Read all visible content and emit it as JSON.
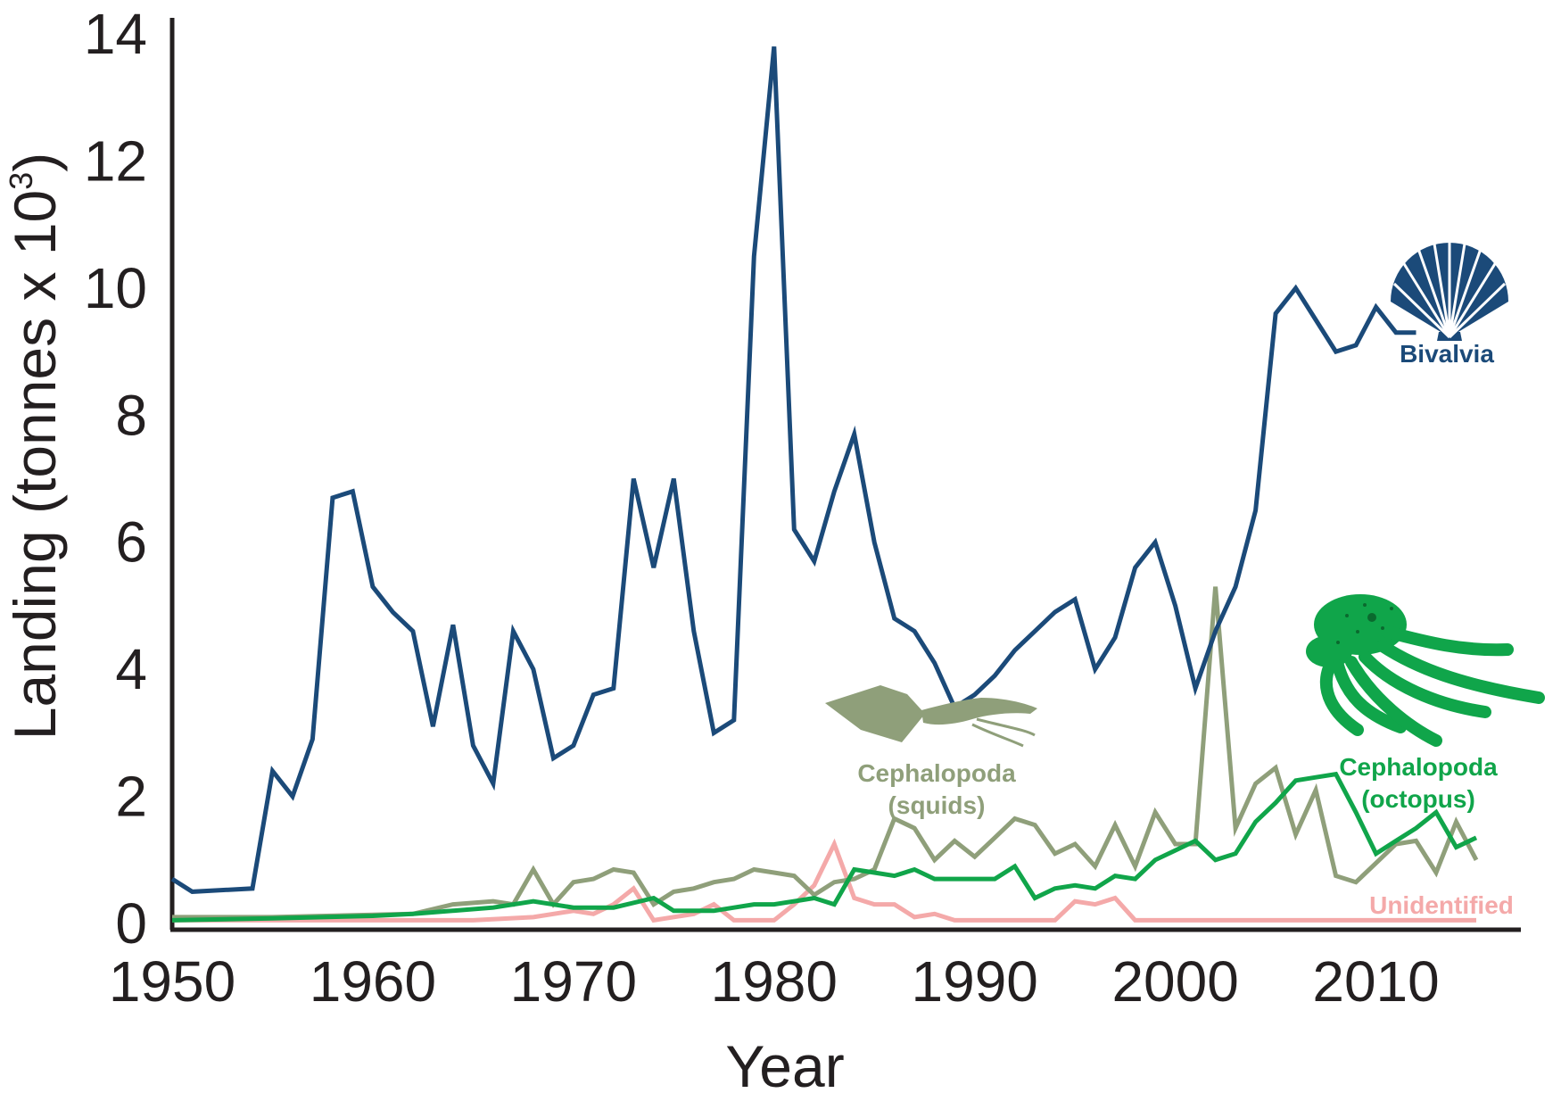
{
  "chart_data": {
    "type": "line",
    "xlabel": "Year",
    "ylabel": "Landing (tonnes x 10",
    "ylabel_superscript": "3",
    "ylabel_close": ")",
    "xlim": [
      1950,
      2017
    ],
    "ylim": [
      0,
      14
    ],
    "x_ticks": [
      1950,
      1960,
      1970,
      1980,
      1990,
      2000,
      2010
    ],
    "y_ticks": [
      0,
      2,
      4,
      6,
      8,
      10,
      12,
      14
    ],
    "grid": false,
    "legend": "inline labels next to series",
    "series": [
      {
        "name": "Bivalvia",
        "color": "#1b4a79",
        "points": [
          [
            1950,
            0.7
          ],
          [
            1951,
            0.5
          ],
          [
            1954,
            0.55
          ],
          [
            1955,
            2.4
          ],
          [
            1956,
            2.0
          ],
          [
            1957,
            2.9
          ],
          [
            1958,
            6.7
          ],
          [
            1959,
            6.8
          ],
          [
            1960,
            5.3
          ],
          [
            1961,
            4.9
          ],
          [
            1962,
            4.6
          ],
          [
            1963,
            3.1
          ],
          [
            1964,
            4.7
          ],
          [
            1965,
            2.8
          ],
          [
            1966,
            2.2
          ],
          [
            1967,
            4.6
          ],
          [
            1968,
            4.0
          ],
          [
            1969,
            2.6
          ],
          [
            1970,
            2.8
          ],
          [
            1971,
            3.6
          ],
          [
            1972,
            3.7
          ],
          [
            1973,
            7.0
          ],
          [
            1974,
            5.6
          ],
          [
            1975,
            7.0
          ],
          [
            1976,
            4.6
          ],
          [
            1977,
            3.0
          ],
          [
            1978,
            3.2
          ],
          [
            1979,
            10.5
          ],
          [
            1980,
            13.8
          ],
          [
            1981,
            6.2
          ],
          [
            1982,
            5.7
          ],
          [
            1983,
            6.8
          ],
          [
            1984,
            7.7
          ],
          [
            1985,
            6.0
          ],
          [
            1986,
            4.8
          ],
          [
            1987,
            4.6
          ],
          [
            1988,
            4.1
          ],
          [
            1989,
            3.4
          ],
          [
            1990,
            3.6
          ],
          [
            1991,
            3.9
          ],
          [
            1992,
            4.3
          ],
          [
            1993,
            4.6
          ],
          [
            1994,
            4.9
          ],
          [
            1995,
            5.1
          ],
          [
            1996,
            4.0
          ],
          [
            1997,
            4.5
          ],
          [
            1998,
            5.6
          ],
          [
            1999,
            6.0
          ],
          [
            2000,
            5.0
          ],
          [
            2001,
            3.7
          ],
          [
            2002,
            4.6
          ],
          [
            2003,
            5.3
          ],
          [
            2004,
            6.5
          ],
          [
            2005,
            9.6
          ],
          [
            2006,
            10.0
          ],
          [
            2007,
            9.5
          ],
          [
            2008,
            9.0
          ],
          [
            2009,
            9.1
          ],
          [
            2010,
            9.7
          ],
          [
            2011,
            9.3
          ],
          [
            2012,
            9.3
          ]
        ]
      },
      {
        "name": "Cephalopoda\n(squids)",
        "color": "#8f9f7a",
        "points": [
          [
            1950,
            0.1
          ],
          [
            1955,
            0.1
          ],
          [
            1962,
            0.15
          ],
          [
            1964,
            0.3
          ],
          [
            1966,
            0.35
          ],
          [
            1967,
            0.3
          ],
          [
            1968,
            0.85
          ],
          [
            1969,
            0.3
          ],
          [
            1970,
            0.65
          ],
          [
            1971,
            0.7
          ],
          [
            1972,
            0.85
          ],
          [
            1973,
            0.8
          ],
          [
            1974,
            0.3
          ],
          [
            1975,
            0.5
          ],
          [
            1976,
            0.55
          ],
          [
            1977,
            0.65
          ],
          [
            1978,
            0.7
          ],
          [
            1979,
            0.85
          ],
          [
            1980,
            0.8
          ],
          [
            1981,
            0.75
          ],
          [
            1982,
            0.45
          ],
          [
            1983,
            0.65
          ],
          [
            1984,
            0.7
          ],
          [
            1985,
            0.85
          ],
          [
            1986,
            1.65
          ],
          [
            1987,
            1.5
          ],
          [
            1988,
            1.0
          ],
          [
            1989,
            1.3
          ],
          [
            1990,
            1.05
          ],
          [
            1991,
            1.35
          ],
          [
            1992,
            1.65
          ],
          [
            1993,
            1.55
          ],
          [
            1994,
            1.1
          ],
          [
            1995,
            1.25
          ],
          [
            1996,
            0.9
          ],
          [
            1997,
            1.55
          ],
          [
            1998,
            0.9
          ],
          [
            1999,
            1.75
          ],
          [
            2000,
            1.25
          ],
          [
            2001,
            1.25
          ],
          [
            2002,
            5.3
          ],
          [
            2003,
            1.5
          ],
          [
            2004,
            2.2
          ],
          [
            2005,
            2.45
          ],
          [
            2006,
            1.4
          ],
          [
            2007,
            2.1
          ],
          [
            2008,
            0.75
          ],
          [
            2009,
            0.65
          ],
          [
            2010,
            0.95
          ],
          [
            2011,
            1.25
          ],
          [
            2012,
            1.3
          ],
          [
            2013,
            0.8
          ],
          [
            2014,
            1.6
          ],
          [
            2015,
            1.0
          ]
        ]
      },
      {
        "name": "Cephalopoda\n(octopus)",
        "color": "#10a54a",
        "points": [
          [
            1950,
            0.05
          ],
          [
            1955,
            0.08
          ],
          [
            1960,
            0.12
          ],
          [
            1962,
            0.15
          ],
          [
            1966,
            0.25
          ],
          [
            1968,
            0.35
          ],
          [
            1970,
            0.25
          ],
          [
            1972,
            0.25
          ],
          [
            1974,
            0.4
          ],
          [
            1975,
            0.2
          ],
          [
            1976,
            0.2
          ],
          [
            1977,
            0.2
          ],
          [
            1978,
            0.25
          ],
          [
            1979,
            0.3
          ],
          [
            1980,
            0.3
          ],
          [
            1981,
            0.35
          ],
          [
            1982,
            0.4
          ],
          [
            1983,
            0.3
          ],
          [
            1984,
            0.85
          ],
          [
            1985,
            0.8
          ],
          [
            1986,
            0.75
          ],
          [
            1987,
            0.85
          ],
          [
            1988,
            0.7
          ],
          [
            1989,
            0.7
          ],
          [
            1990,
            0.7
          ],
          [
            1991,
            0.7
          ],
          [
            1992,
            0.9
          ],
          [
            1993,
            0.4
          ],
          [
            1994,
            0.55
          ],
          [
            1995,
            0.6
          ],
          [
            1996,
            0.55
          ],
          [
            1997,
            0.75
          ],
          [
            1998,
            0.7
          ],
          [
            1999,
            1.0
          ],
          [
            2000,
            1.15
          ],
          [
            2001,
            1.3
          ],
          [
            2002,
            1.0
          ],
          [
            2003,
            1.1
          ],
          [
            2004,
            1.6
          ],
          [
            2005,
            1.9
          ],
          [
            2006,
            2.25
          ],
          [
            2007,
            2.3
          ],
          [
            2008,
            2.35
          ],
          [
            2009,
            1.75
          ],
          [
            2010,
            1.1
          ],
          [
            2011,
            1.3
          ],
          [
            2012,
            1.5
          ],
          [
            2013,
            1.75
          ],
          [
            2014,
            1.2
          ],
          [
            2015,
            1.35
          ]
        ]
      },
      {
        "name": "Unidentified",
        "color": "#f4a9a9",
        "points": [
          [
            1950,
            0.05
          ],
          [
            1965,
            0.05
          ],
          [
            1968,
            0.1
          ],
          [
            1970,
            0.2
          ],
          [
            1971,
            0.15
          ],
          [
            1972,
            0.3
          ],
          [
            1973,
            0.55
          ],
          [
            1974,
            0.05
          ],
          [
            1976,
            0.15
          ],
          [
            1977,
            0.3
          ],
          [
            1978,
            0.05
          ],
          [
            1980,
            0.05
          ],
          [
            1981,
            0.3
          ],
          [
            1982,
            0.6
          ],
          [
            1983,
            1.25
          ],
          [
            1984,
            0.4
          ],
          [
            1985,
            0.3
          ],
          [
            1986,
            0.3
          ],
          [
            1987,
            0.1
          ],
          [
            1988,
            0.15
          ],
          [
            1989,
            0.05
          ],
          [
            1994,
            0.05
          ],
          [
            1995,
            0.35
          ],
          [
            1996,
            0.3
          ],
          [
            1997,
            0.4
          ],
          [
            1998,
            0.05
          ],
          [
            2015,
            0.05
          ]
        ]
      }
    ]
  },
  "series_labels": {
    "bivalvia": "Bivalvia",
    "squids_line1": "Cephalopoda",
    "squids_line2": "(squids)",
    "octopus_line1": "Cephalopoda",
    "octopus_line2": "(octopus)",
    "unidentified": "Unidentified"
  },
  "icons": {
    "bivalvia": "scallop-shell-icon",
    "squids": "squid-icon",
    "octopus": "octopus-icon"
  }
}
